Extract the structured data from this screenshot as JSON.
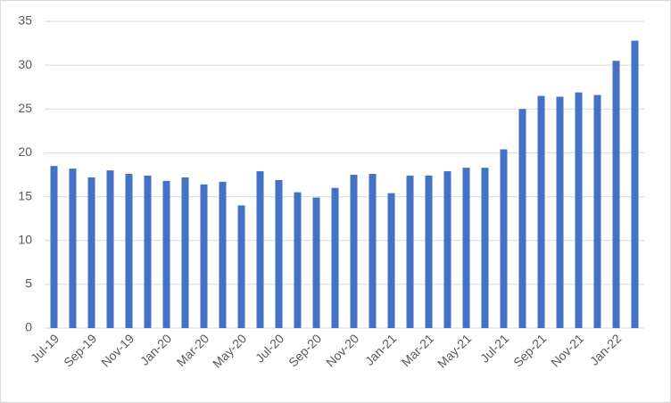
{
  "chart_data": {
    "type": "bar",
    "categories": [
      "Jul-19",
      null,
      "Sep-19",
      null,
      "Nov-19",
      null,
      "Jan-20",
      null,
      "Mar-20",
      null,
      "May-20",
      null,
      "Jul-20",
      null,
      "Sep-20",
      null,
      "Nov-20",
      null,
      "Jan-21",
      null,
      "Mar-21",
      null,
      "May-21",
      null,
      "Jul-21",
      null,
      "Sep-21",
      null,
      "Nov-21",
      null,
      "Jan-22",
      null
    ],
    "values": [
      18.5,
      18.2,
      17.2,
      18.0,
      17.6,
      17.4,
      16.8,
      17.2,
      16.4,
      16.7,
      14.0,
      17.9,
      16.9,
      15.5,
      14.9,
      16.0,
      17.5,
      17.6,
      15.4,
      17.4,
      17.4,
      17.9,
      18.3,
      18.3,
      20.4,
      25.0,
      26.5,
      26.4,
      26.9,
      26.6,
      30.5,
      32.8
    ],
    "color": "#4472c4",
    "ylim": [
      0,
      35
    ],
    "yticks": [
      0,
      5,
      10,
      15,
      20,
      25,
      30,
      35
    ],
    "grid": true
  }
}
